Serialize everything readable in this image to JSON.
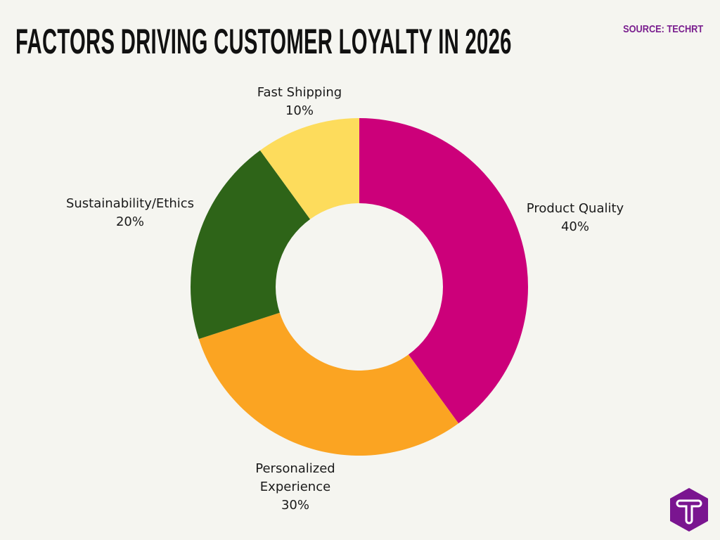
{
  "title": "FACTORS DRIVING CUSTOMER LOYALTY IN 2026",
  "source": "SOURCE: TECHRT",
  "logo": {
    "letter": "T",
    "color": "#7a1590"
  },
  "chart_data": {
    "type": "pie",
    "donut": true,
    "start": "top",
    "direction": "clockwise",
    "slices": [
      {
        "label": "Product Quality",
        "value": 40,
        "value_label": "40%",
        "color": "#cc007a"
      },
      {
        "label": "Personalized Experience",
        "value": 30,
        "value_label": "30%",
        "color": "#fba422"
      },
      {
        "label": "Sustainability/Ethics",
        "value": 20,
        "value_label": "20%",
        "color": "#2e6418"
      },
      {
        "label": "Fast Shipping",
        "value": 10,
        "value_label": "10%",
        "color": "#fddc5c"
      }
    ],
    "legend": "none"
  }
}
